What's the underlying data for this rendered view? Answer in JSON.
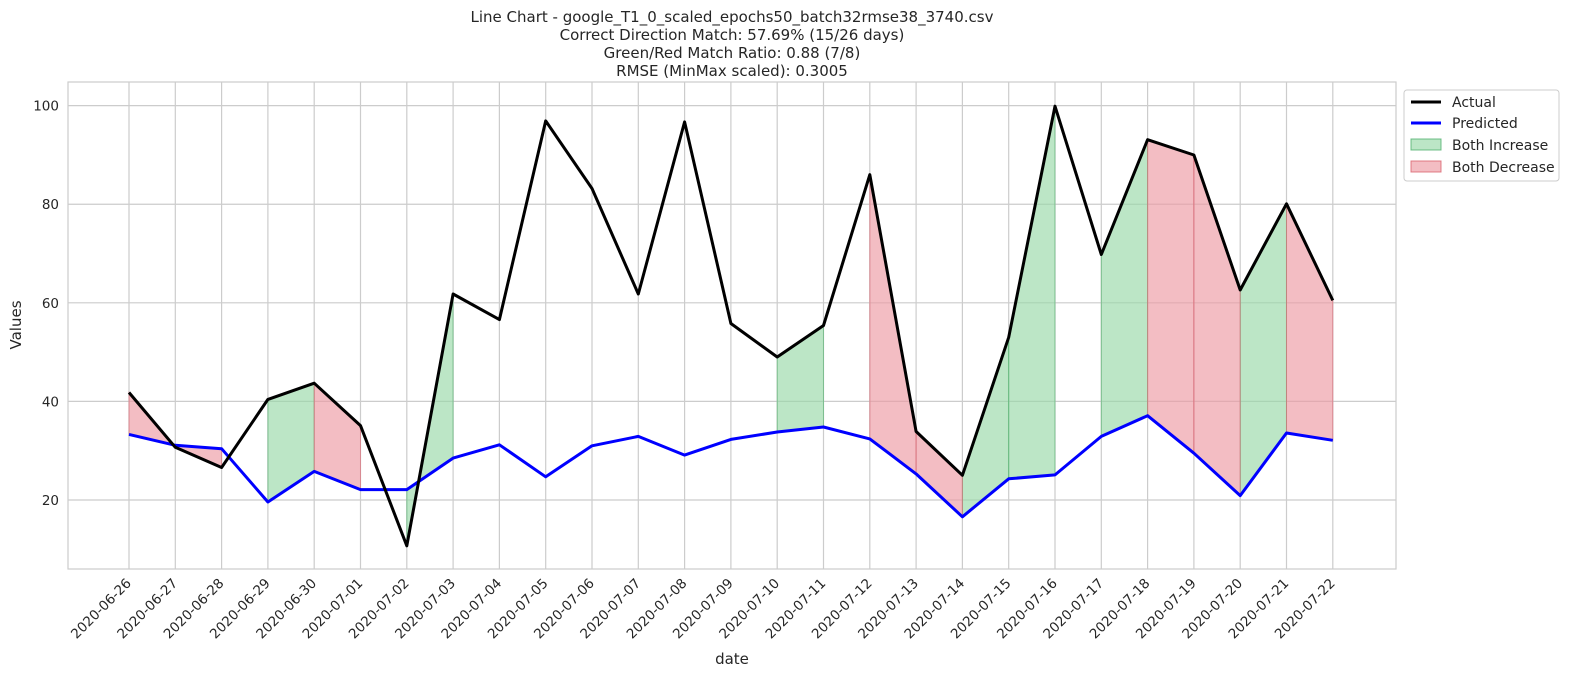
{
  "chart_data": {
    "type": "line",
    "title_lines": [
      "Line Chart - google_T1_0_scaled_epochs50_batch32rmse38_3740.csv",
      "Correct Direction Match: 57.69% (15/26 days)",
      "Green/Red Match Ratio: 0.88 (7/8)",
      "RMSE (MinMax scaled): 0.3005"
    ],
    "xlabel": "date",
    "ylabel": "Values",
    "x": [
      "2020-06-26",
      "2020-06-27",
      "2020-06-28",
      "2020-06-29",
      "2020-06-30",
      "2020-07-01",
      "2020-07-02",
      "2020-07-03",
      "2020-07-04",
      "2020-07-05",
      "2020-07-06",
      "2020-07-07",
      "2020-07-08",
      "2020-07-09",
      "2020-07-10",
      "2020-07-11",
      "2020-07-12",
      "2020-07-13",
      "2020-07-14",
      "2020-07-15",
      "2020-07-16",
      "2020-07-17",
      "2020-07-18",
      "2020-07-19",
      "2020-07-20",
      "2020-07-21",
      "2020-07-22"
    ],
    "series": [
      {
        "name": "Actual",
        "color": "#000000",
        "values": [
          41.8,
          30.7,
          26.6,
          40.4,
          43.7,
          35.1,
          10.7,
          61.8,
          56.6,
          96.9,
          83.2,
          61.8,
          96.7,
          55.8,
          49.0,
          55.4,
          86.0,
          33.9,
          25.0,
          53.0,
          99.9,
          69.8,
          93.1,
          90.0,
          62.6,
          80.1,
          60.5
        ]
      },
      {
        "name": "Predicted",
        "color": "#0000ff",
        "values": [
          33.3,
          31.1,
          30.4,
          19.6,
          25.8,
          22.1,
          22.1,
          28.5,
          31.2,
          24.7,
          31.0,
          32.9,
          29.1,
          32.3,
          33.8,
          34.8,
          32.4,
          25.3,
          16.6,
          24.3,
          25.1,
          32.9,
          37.1,
          29.5,
          20.9,
          33.6,
          32.1
        ]
      }
    ],
    "fill_legend": [
      {
        "name": "Both Increase",
        "color": "#98d9a8"
      },
      {
        "name": "Both Decrease",
        "color": "#ec9aa3"
      }
    ],
    "green_segments": [
      [
        3,
        4
      ],
      [
        6,
        7
      ],
      [
        14,
        15
      ],
      [
        18,
        19
      ],
      [
        19,
        20
      ],
      [
        21,
        22
      ],
      [
        24,
        25
      ]
    ],
    "red_segments": [
      [
        0,
        1
      ],
      [
        1,
        2
      ],
      [
        4,
        5
      ],
      [
        16,
        17
      ],
      [
        17,
        18
      ],
      [
        22,
        23
      ],
      [
        23,
        24
      ],
      [
        25,
        26
      ]
    ],
    "yticks": [
      20,
      40,
      60,
      80,
      100
    ],
    "ylim": [
      6,
      104.8
    ],
    "grid": true,
    "legend_position": "outside-top-right"
  }
}
